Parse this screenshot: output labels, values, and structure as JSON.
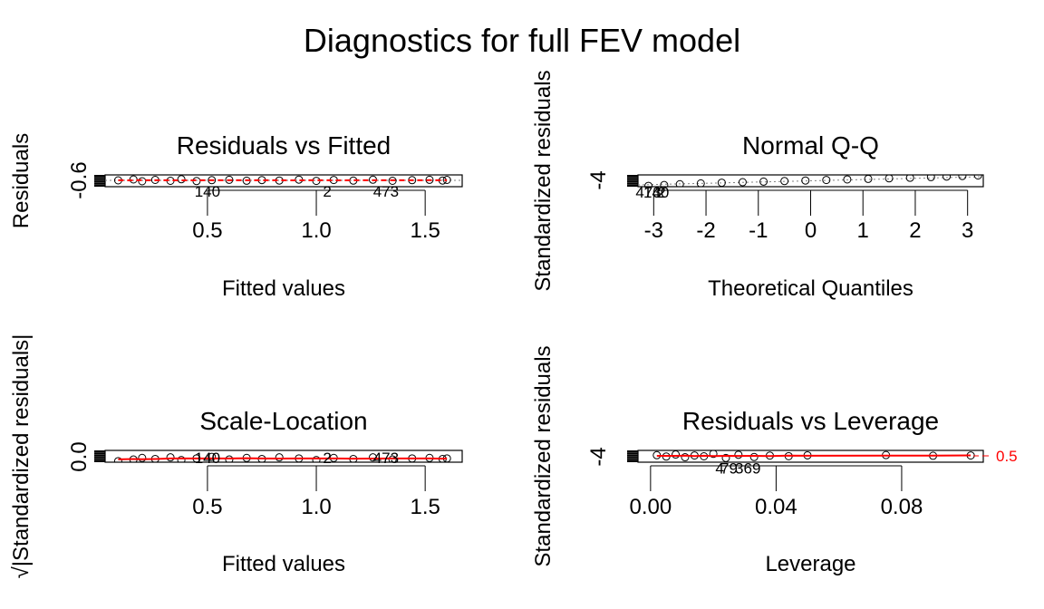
{
  "figure": {
    "title": "Diagnostics for full FEV model"
  },
  "chart_data": [
    {
      "type": "scatter",
      "title": "Residuals vs Fitted",
      "xlabel": "Fitted values",
      "ylabel": "Residuals",
      "xlim": [
        0.03,
        1.67
      ],
      "ylim": [
        -0.7,
        0.6
      ],
      "xticks": [
        0.5,
        1.0,
        1.5
      ],
      "xtick_labels": [
        "0.5",
        "1.0",
        "1.5"
      ],
      "yticks": [
        -0.6
      ],
      "ytick_labels": [
        "-0.6"
      ],
      "points_x": [
        0.09,
        0.16,
        0.2,
        0.26,
        0.33,
        0.38,
        0.45,
        0.52,
        0.6,
        0.68,
        0.75,
        0.83,
        0.92,
        1.0,
        1.08,
        1.17,
        1.26,
        1.35,
        1.44,
        1.52,
        1.58,
        1.6
      ],
      "points_y": [
        0.0,
        0.1,
        -0.1,
        0.05,
        -0.05,
        0.12,
        -0.08,
        0.02,
        0.06,
        -0.04,
        0.03,
        -0.02,
        0.08,
        -0.06,
        0.04,
        -0.03,
        0.07,
        -0.05,
        0.02,
        0.06,
        -0.02,
        0.05
      ],
      "smoother": {
        "color": "#ff0000",
        "style": "dashed"
      },
      "reference_line": {
        "y": 0,
        "color": "#808080",
        "style": "dotted"
      },
      "point_labels": [
        {
          "text": "140",
          "x": 0.5,
          "y": -0.5
        },
        {
          "text": "2",
          "x": 1.05,
          "y": -0.5
        },
        {
          "text": "473",
          "x": 1.32,
          "y": -0.5
        }
      ]
    },
    {
      "type": "scatter",
      "title": "Normal Q-Q",
      "xlabel": "Theoretical Quantiles",
      "ylabel": "Standardized residuals",
      "xlim": [
        -3.3,
        3.3
      ],
      "ylim": [
        -4.6,
        4.0
      ],
      "xticks": [
        -3,
        -2,
        -1,
        0,
        1,
        2,
        3
      ],
      "xtick_labels": [
        "-3",
        "-2",
        "-1",
        "0",
        "1",
        "2",
        "3"
      ],
      "yticks": [
        -4
      ],
      "ytick_labels": [
        "-4"
      ],
      "points_x": [
        -3.1,
        -2.8,
        -2.5,
        -2.1,
        -1.7,
        -1.3,
        -0.9,
        -0.5,
        -0.1,
        0.3,
        0.7,
        1.1,
        1.5,
        1.9,
        2.3,
        2.6,
        2.9,
        3.2
      ],
      "points_y": [
        -4.0,
        -3.4,
        -2.8,
        -2.2,
        -1.7,
        -1.3,
        -0.9,
        -0.5,
        -0.1,
        0.3,
        0.7,
        1.1,
        1.5,
        1.9,
        2.4,
        2.8,
        3.2,
        3.6
      ],
      "reference_line": {
        "color": "#808080",
        "style": "dotted"
      },
      "point_labels": [
        {
          "text": "473",
          "x": -3.1,
          "y": -4.0
        },
        {
          "text": "140",
          "x": -2.95,
          "y": -4.0
        },
        {
          "text": "2",
          "x": -2.85,
          "y": -4.0
        }
      ]
    },
    {
      "type": "scatter",
      "title": "Scale-Location",
      "xlabel": "Fitted values",
      "ylabel": "√|Standardized residuals|",
      "xlim": [
        0.03,
        1.67
      ],
      "ylim": [
        0.0,
        2.2
      ],
      "xticks": [
        0.5,
        1.0,
        1.5
      ],
      "xtick_labels": [
        "0.5",
        "1.0",
        "1.5"
      ],
      "yticks": [
        0.0
      ],
      "ytick_labels": [
        "0.0"
      ],
      "points_x": [
        0.09,
        0.16,
        0.2,
        0.26,
        0.33,
        0.38,
        0.45,
        0.52,
        0.6,
        0.68,
        0.75,
        0.83,
        0.92,
        1.0,
        1.08,
        1.17,
        1.26,
        1.35,
        1.44,
        1.52,
        1.58,
        1.6
      ],
      "points_y": [
        0.2,
        0.5,
        0.8,
        0.6,
        0.9,
        0.4,
        0.7,
        1.0,
        0.5,
        0.8,
        0.6,
        0.9,
        0.7,
        0.4,
        0.8,
        0.6,
        0.9,
        0.5,
        0.7,
        0.8,
        0.6,
        0.7
      ],
      "smoother": {
        "color": "#ff0000",
        "style": "solid"
      },
      "point_labels": [
        {
          "text": "140",
          "x": 0.5,
          "y": 2.0
        },
        {
          "text": "2",
          "x": 1.05,
          "y": 2.0
        },
        {
          "text": "473",
          "x": 1.32,
          "y": 2.0
        }
      ]
    },
    {
      "type": "scatter",
      "title": "Residuals vs Leverage",
      "xlabel": "Leverage",
      "ylabel": "Standardized residuals",
      "xlim": [
        -0.004,
        0.106
      ],
      "ylim": [
        -4.6,
        4.0
      ],
      "xticks": [
        0.0,
        0.04,
        0.08
      ],
      "xtick_labels": [
        "0.00",
        "0.04",
        "0.08"
      ],
      "yticks": [
        -4
      ],
      "ytick_labels": [
        "-4"
      ],
      "points_x": [
        0.002,
        0.005,
        0.008,
        0.011,
        0.014,
        0.017,
        0.02,
        0.024,
        0.028,
        0.033,
        0.038,
        0.044,
        0.05,
        0.075,
        0.09,
        0.102
      ],
      "points_y": [
        0.5,
        -0.5,
        1.0,
        -1.0,
        0.3,
        -0.3,
        1.5,
        -1.5,
        0.8,
        -0.8,
        0.2,
        -0.2,
        0.4,
        0.6,
        0.1,
        0.3
      ],
      "smoother": {
        "color": "#ff0000",
        "style": "solid"
      },
      "cooks_distance": {
        "level": "0.5",
        "color": "#ff0000",
        "style": "dashed"
      },
      "point_labels": [
        {
          "text": "4",
          "x": 0.022,
          "y": -4.3
        },
        {
          "text": "79",
          "x": 0.025,
          "y": -4.3
        },
        {
          "text": "369",
          "x": 0.031,
          "y": -4.3
        }
      ]
    }
  ]
}
